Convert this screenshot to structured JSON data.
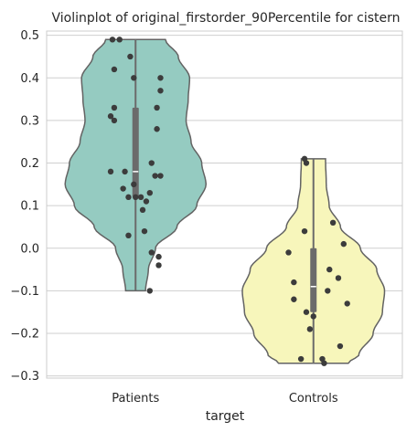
{
  "chart_data": {
    "type": "violin",
    "title": "Violinplot of original_firstorder_90Percentile for cistern",
    "xlabel": "target",
    "ylabel": "",
    "ylim": [
      -0.305,
      0.51
    ],
    "yticks": [
      0.5,
      0.4,
      0.3,
      0.2,
      0.1,
      0.0,
      -0.1,
      -0.2,
      -0.3
    ],
    "ytick_labels": [
      "0.5",
      "0.4",
      "0.3",
      "0.2",
      "0.1",
      "0.0",
      "−0.1",
      "−0.2",
      "−0.3"
    ],
    "grid": "horizontal",
    "categories": [
      "Patients",
      "Controls"
    ],
    "series": [
      {
        "category": "Patients",
        "color": "#95cbc1",
        "min": -0.1,
        "max": 0.49,
        "q1": 0.12,
        "median": 0.18,
        "q3": 0.33,
        "density": [
          [
            -0.1,
            0.14
          ],
          [
            -0.05,
            0.18
          ],
          [
            0.0,
            0.28
          ],
          [
            0.05,
            0.58
          ],
          [
            0.1,
            0.86
          ],
          [
            0.15,
            0.99
          ],
          [
            0.2,
            0.93
          ],
          [
            0.25,
            0.78
          ],
          [
            0.3,
            0.71
          ],
          [
            0.35,
            0.74
          ],
          [
            0.4,
            0.76
          ],
          [
            0.45,
            0.6
          ],
          [
            0.49,
            0.42
          ]
        ],
        "points": [
          [
            0.49,
            -0.13
          ],
          [
            0.49,
            -0.09
          ],
          [
            0.45,
            -0.03
          ],
          [
            0.42,
            -0.12
          ],
          [
            0.4,
            -0.01
          ],
          [
            0.4,
            0.14
          ],
          [
            0.37,
            0.14
          ],
          [
            0.33,
            -0.12
          ],
          [
            0.33,
            0.12
          ],
          [
            0.31,
            -0.14
          ],
          [
            0.3,
            -0.12
          ],
          [
            0.28,
            0.12
          ],
          [
            0.2,
            0.09
          ],
          [
            0.18,
            -0.14
          ],
          [
            0.18,
            -0.06
          ],
          [
            0.17,
            0.11
          ],
          [
            0.17,
            0.14
          ],
          [
            0.15,
            -0.01
          ],
          [
            0.14,
            -0.07
          ],
          [
            0.13,
            0.08
          ],
          [
            0.12,
            -0.04
          ],
          [
            0.12,
            0.0
          ],
          [
            0.12,
            0.03
          ],
          [
            0.11,
            0.06
          ],
          [
            0.09,
            0.04
          ],
          [
            0.04,
            0.05
          ],
          [
            0.03,
            -0.04
          ],
          [
            -0.01,
            0.09
          ],
          [
            -0.02,
            0.13
          ],
          [
            -0.04,
            0.13
          ],
          [
            -0.1,
            0.08
          ]
        ]
      },
      {
        "category": "Controls",
        "color": "#f7f6bb",
        "min": -0.27,
        "max": 0.21,
        "q1": -0.15,
        "median": -0.09,
        "q3": 0.0,
        "density": [
          [
            -0.27,
            0.49
          ],
          [
            -0.25,
            0.64
          ],
          [
            -0.2,
            0.84
          ],
          [
            -0.15,
            0.97
          ],
          [
            -0.1,
            1.0
          ],
          [
            -0.05,
            0.89
          ],
          [
            0.0,
            0.66
          ],
          [
            0.05,
            0.38
          ],
          [
            0.1,
            0.22
          ],
          [
            0.15,
            0.18
          ],
          [
            0.21,
            0.17
          ]
        ],
        "points": [
          [
            0.21,
            -0.05
          ],
          [
            0.2,
            -0.04
          ],
          [
            0.06,
            0.11
          ],
          [
            0.04,
            -0.05
          ],
          [
            0.01,
            0.17
          ],
          [
            -0.01,
            -0.14
          ],
          [
            -0.05,
            0.09
          ],
          [
            -0.07,
            0.14
          ],
          [
            -0.08,
            -0.11
          ],
          [
            -0.1,
            0.08
          ],
          [
            -0.12,
            -0.11
          ],
          [
            -0.13,
            0.19
          ],
          [
            -0.15,
            -0.04
          ],
          [
            -0.16,
            0.0
          ],
          [
            -0.19,
            -0.02
          ],
          [
            -0.23,
            0.15
          ],
          [
            -0.26,
            0.05
          ],
          [
            -0.26,
            -0.07
          ],
          [
            -0.27,
            0.06
          ]
        ]
      }
    ]
  },
  "colors": {
    "violin_stroke": "#636363",
    "point": "#3c3c3c",
    "box": "#6b6b6b",
    "median": "#ffffff",
    "grid": "#cfcfcf",
    "axis": "#cccccc"
  }
}
